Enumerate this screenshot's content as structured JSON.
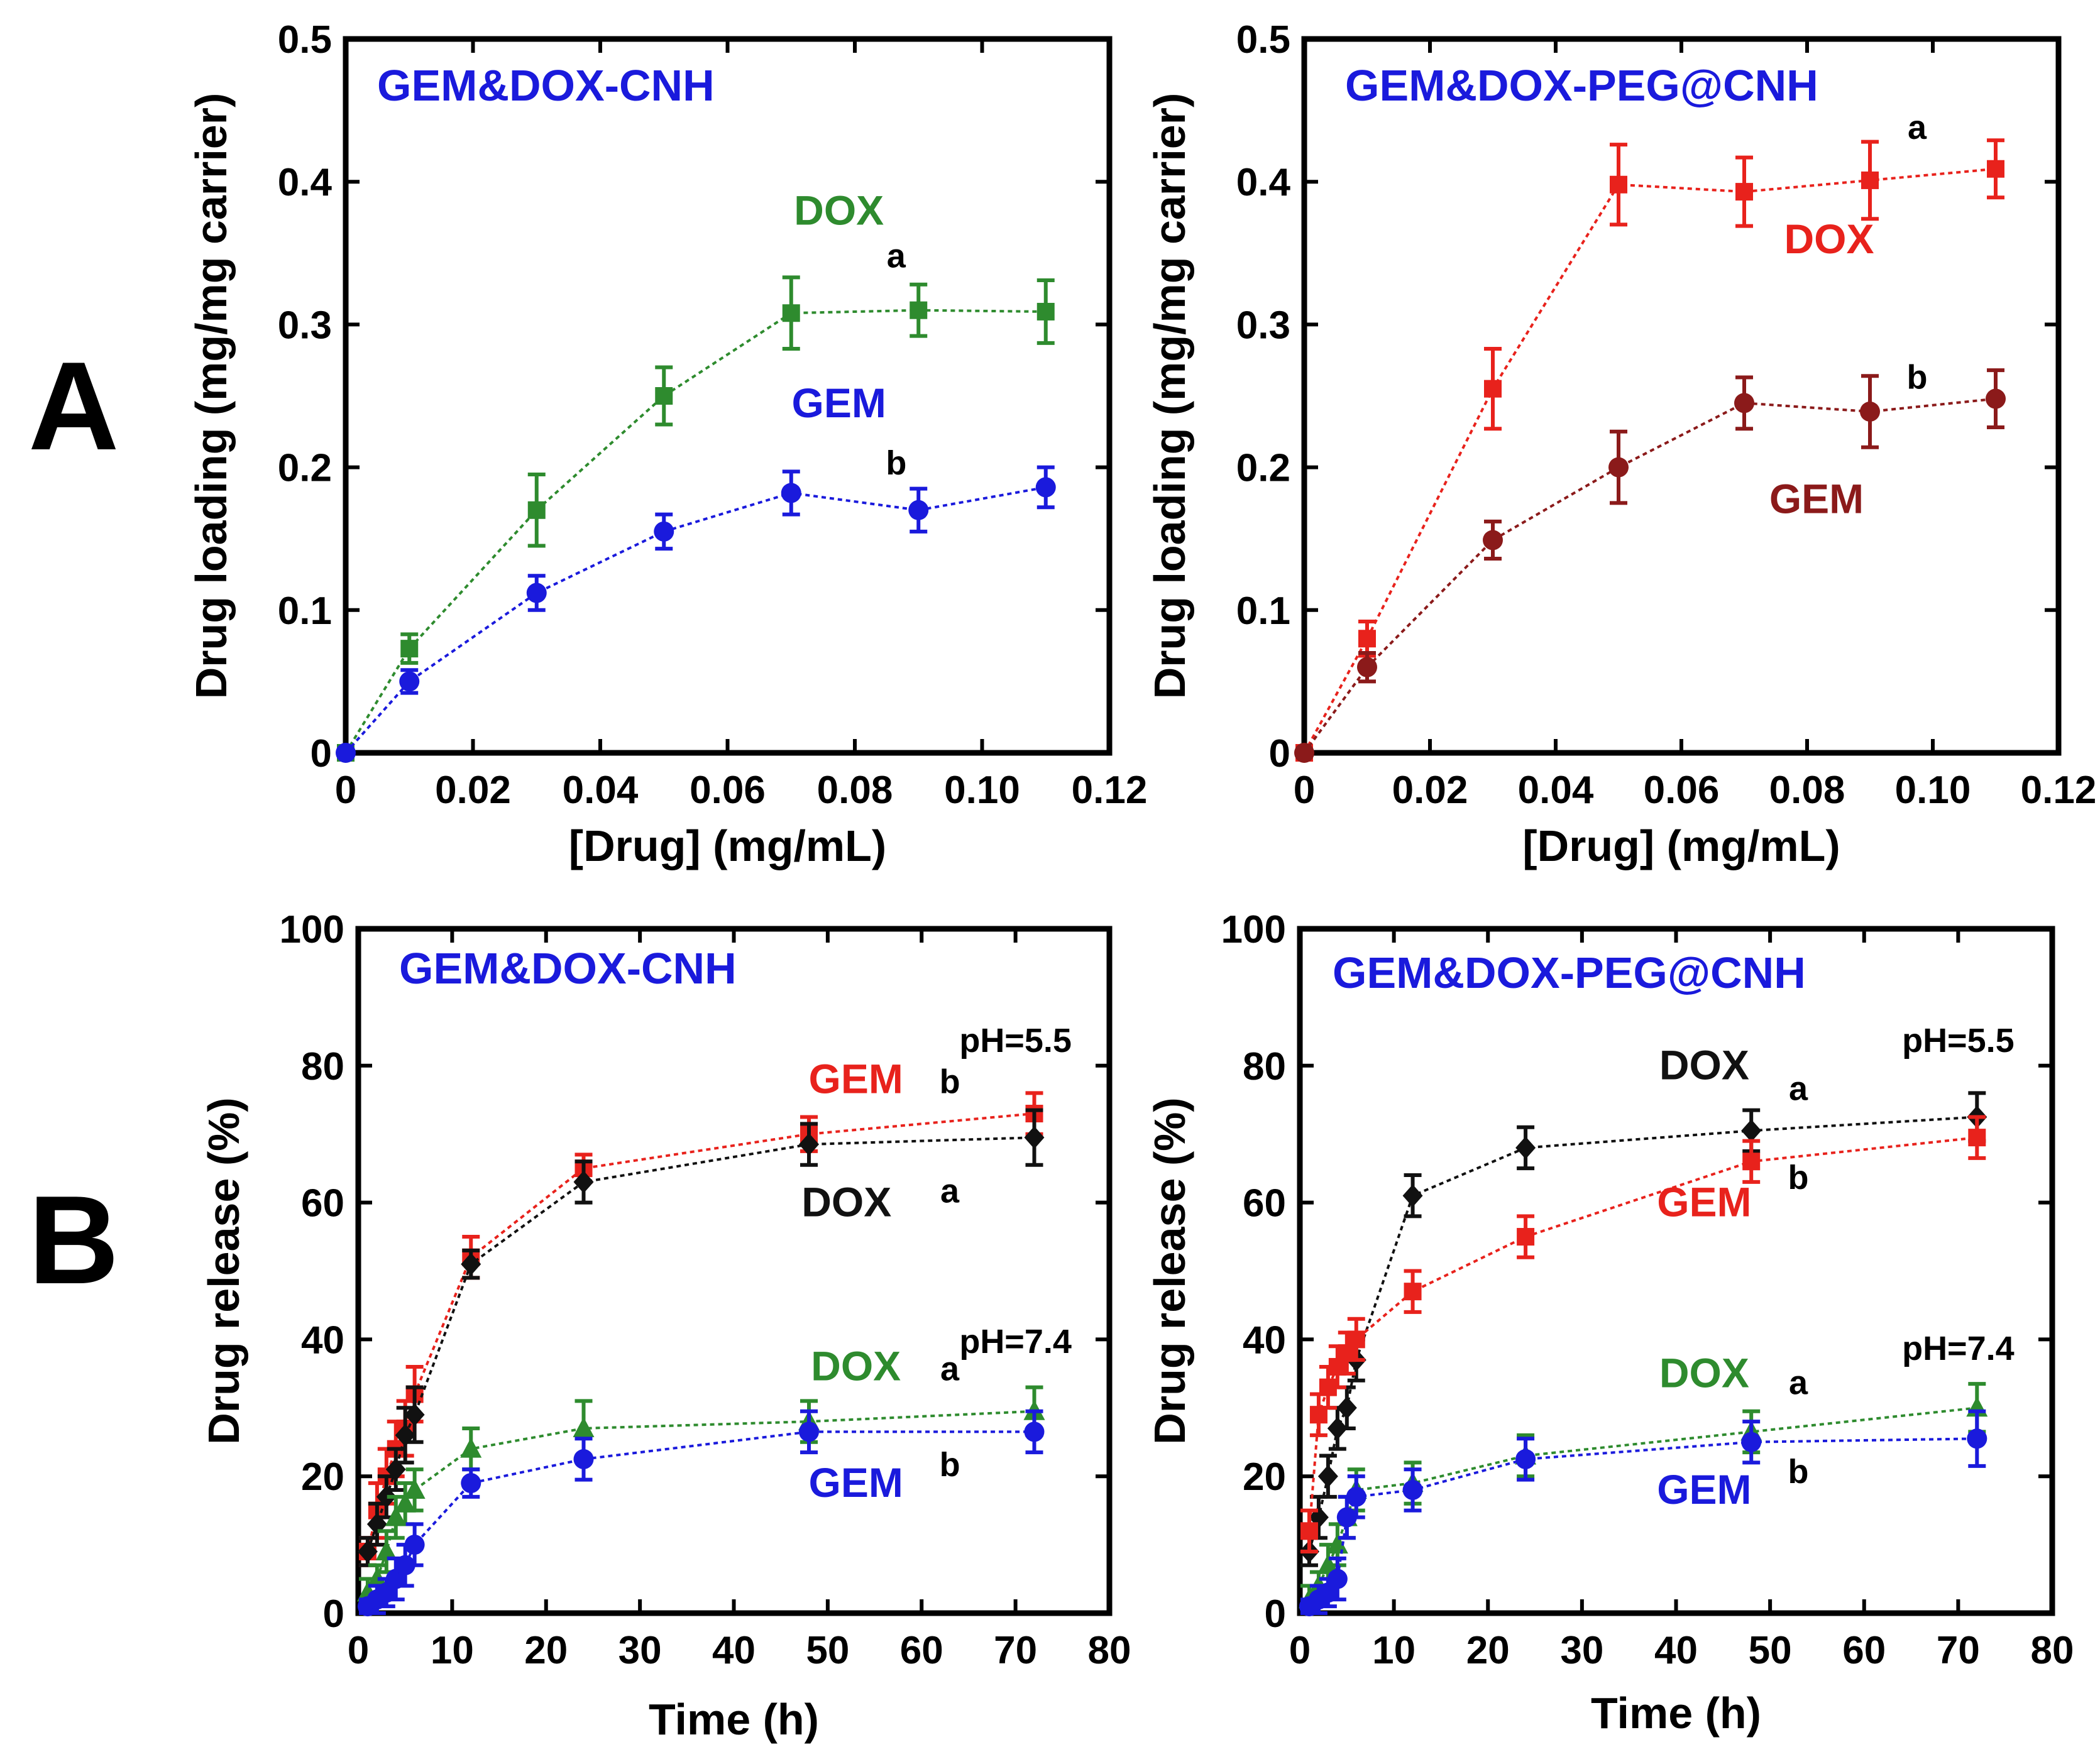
{
  "panels": [
    {
      "letter": "A"
    },
    {
      "letter": "B"
    }
  ],
  "chart_data": [
    {
      "type": "line",
      "title": "GEM&DOX-CNH",
      "title_color": "#1a1adc",
      "xlabel": "[Drug] (mg/mL)",
      "ylabel": "Drug loading (mg/mg carrier)",
      "xlim": [
        0,
        0.12
      ],
      "ylim": [
        0,
        0.5
      ],
      "xticks": [
        0,
        0.02,
        0.04,
        0.06,
        0.08,
        0.1,
        0.12
      ],
      "xtick_labels": [
        "0",
        "0.02",
        "0.04",
        "0.06",
        "0.08",
        "0.10",
        "0.12"
      ],
      "yticks": [
        0,
        0.1,
        0.2,
        0.3,
        0.4,
        0.5
      ],
      "ytick_labels": [
        "0",
        "0.1",
        "0.2",
        "0.3",
        "0.4",
        "0.5"
      ],
      "series": [
        {
          "name": "DOX",
          "color": "#2e8b2e",
          "marker": "square",
          "x": [
            0,
            0.01,
            0.03,
            0.05,
            0.07,
            0.09,
            0.11
          ],
          "y": [
            0,
            0.073,
            0.17,
            0.25,
            0.308,
            0.31,
            0.309
          ],
          "err": [
            0,
            0.01,
            0.025,
            0.02,
            0.025,
            0.018,
            0.022
          ]
        },
        {
          "name": "GEM",
          "color": "#1a1adc",
          "marker": "circle",
          "x": [
            0,
            0.01,
            0.03,
            0.05,
            0.07,
            0.09,
            0.11
          ],
          "y": [
            0,
            0.05,
            0.112,
            0.155,
            0.182,
            0.17,
            0.186
          ],
          "err": [
            0,
            0.008,
            0.012,
            0.012,
            0.015,
            0.015,
            0.014
          ]
        }
      ],
      "annotations": [
        {
          "text": "DOX",
          "color": "#2e8b2e",
          "kind": "series-label",
          "x": 0.0775,
          "y": 0.37
        },
        {
          "text": "a",
          "color": "#000000",
          "kind": "small-label",
          "x": 0.0865,
          "y": 0.34
        },
        {
          "text": "GEM",
          "color": "#1a1adc",
          "kind": "series-label",
          "x": 0.0775,
          "y": 0.235
        },
        {
          "text": "b",
          "color": "#000000",
          "kind": "small-label",
          "x": 0.0865,
          "y": 0.195
        }
      ]
    },
    {
      "type": "line",
      "title": "GEM&DOX-PEG@CNH",
      "title_color": "#1a1adc",
      "xlabel": "[Drug] (mg/mL)",
      "ylabel": "Drug loading (mg/mg carrier)",
      "xlim": [
        0,
        0.12
      ],
      "ylim": [
        0,
        0.5
      ],
      "xticks": [
        0,
        0.02,
        0.04,
        0.06,
        0.08,
        0.1,
        0.12
      ],
      "xtick_labels": [
        "0",
        "0.02",
        "0.04",
        "0.06",
        "0.08",
        "0.10",
        "0.12"
      ],
      "yticks": [
        0,
        0.1,
        0.2,
        0.3,
        0.4,
        0.5
      ],
      "ytick_labels": [
        "0",
        "0.1",
        "0.2",
        "0.3",
        "0.4",
        "0.5"
      ],
      "series": [
        {
          "name": "DOX",
          "color": "#e8221c",
          "marker": "square",
          "x": [
            0,
            0.01,
            0.03,
            0.05,
            0.07,
            0.09,
            0.11
          ],
          "y": [
            0,
            0.08,
            0.255,
            0.398,
            0.393,
            0.401,
            0.409
          ],
          "err": [
            0,
            0.012,
            0.028,
            0.028,
            0.024,
            0.027,
            0.02
          ]
        },
        {
          "name": "GEM",
          "color": "#8b1a1a",
          "marker": "circle",
          "x": [
            0,
            0.01,
            0.03,
            0.05,
            0.07,
            0.09,
            0.11
          ],
          "y": [
            0,
            0.06,
            0.149,
            0.2,
            0.245,
            0.239,
            0.248
          ],
          "err": [
            0,
            0.01,
            0.013,
            0.025,
            0.018,
            0.025,
            0.02
          ]
        }
      ],
      "annotations": [
        {
          "text": "a",
          "color": "#000000",
          "kind": "small-label",
          "x": 0.0975,
          "y": 0.43
        },
        {
          "text": "DOX",
          "color": "#e8221c",
          "kind": "series-label",
          "x": 0.0835,
          "y": 0.35
        },
        {
          "text": "b",
          "color": "#000000",
          "kind": "small-label",
          "x": 0.0975,
          "y": 0.255
        },
        {
          "text": "GEM",
          "color": "#8b1a1a",
          "kind": "series-label",
          "x": 0.0815,
          "y": 0.168
        }
      ]
    },
    {
      "type": "line",
      "title": "GEM&DOX-CNH",
      "title_color": "#1a1adc",
      "xlabel": "Time (h)",
      "ylabel": "Drug release (%)",
      "xlim": [
        0,
        80
      ],
      "ylim": [
        0,
        100
      ],
      "xticks": [
        0,
        10,
        20,
        30,
        40,
        50,
        60,
        70,
        80
      ],
      "xtick_labels": [
        "0",
        "10",
        "20",
        "30",
        "40",
        "50",
        "60",
        "70",
        "80"
      ],
      "yticks": [
        0,
        20,
        40,
        60,
        80,
        100
      ],
      "ytick_labels": [
        "0",
        "20",
        "40",
        "60",
        "80",
        "100"
      ],
      "series": [
        {
          "name": "GEM pH=5.5",
          "color": "#e8221c",
          "marker": "square",
          "x": [
            1,
            2,
            3,
            4,
            5,
            6,
            12,
            24,
            48,
            72
          ],
          "y": [
            9,
            15,
            20,
            24,
            27,
            32,
            52,
            65,
            70,
            73
          ],
          "err": [
            2,
            4,
            4,
            4,
            4,
            4,
            3,
            2,
            2.5,
            3
          ]
        },
        {
          "name": "DOX pH=5.5",
          "color": "#111111",
          "marker": "diamond",
          "x": [
            1,
            2,
            3,
            4,
            5,
            6,
            12,
            24,
            48,
            72
          ],
          "y": [
            9,
            13,
            17,
            21,
            26,
            29,
            51,
            63,
            68.5,
            69.5
          ],
          "err": [
            2,
            3,
            3,
            3,
            4,
            4,
            2,
            3,
            3,
            4
          ]
        },
        {
          "name": "DOX pH=7.4",
          "color": "#2e8b2e",
          "marker": "triangle",
          "x": [
            1,
            2,
            3,
            4,
            5,
            6,
            12,
            24,
            48,
            72
          ],
          "y": [
            3,
            5,
            9,
            14,
            16,
            18,
            24,
            27,
            28,
            29.5
          ],
          "err": [
            2,
            2,
            3,
            3,
            3,
            3,
            3,
            4,
            3,
            3.5
          ]
        },
        {
          "name": "GEM pH=7.4",
          "color": "#1a1adc",
          "marker": "circle",
          "x": [
            1,
            2,
            3,
            4,
            5,
            6,
            12,
            24,
            48,
            72
          ],
          "y": [
            1,
            2,
            3,
            5,
            7,
            10,
            19,
            22.5,
            26.5,
            26.5
          ],
          "err": [
            1,
            2,
            2,
            3,
            3,
            3,
            2,
            3,
            3,
            3
          ]
        }
      ],
      "annotations": [
        {
          "text": "pH=5.5",
          "color": "#000000",
          "kind": "ph-label",
          "x": 70,
          "y": 82
        },
        {
          "text": "GEM",
          "color": "#e8221c",
          "kind": "series-label",
          "x": 53,
          "y": 76
        },
        {
          "text": "b",
          "color": "#000000",
          "kind": "small-label",
          "x": 63,
          "y": 76
        },
        {
          "text": "DOX",
          "color": "#111111",
          "kind": "series-label",
          "x": 52,
          "y": 58
        },
        {
          "text": "a",
          "color": "#000000",
          "kind": "small-label",
          "x": 63,
          "y": 60
        },
        {
          "text": "pH=7.4",
          "color": "#000000",
          "kind": "ph-label",
          "x": 70,
          "y": 38
        },
        {
          "text": "DOX",
          "color": "#2e8b2e",
          "kind": "series-label",
          "x": 53,
          "y": 34
        },
        {
          "text": "a",
          "color": "#000000",
          "kind": "small-label",
          "x": 63,
          "y": 34
        },
        {
          "text": "GEM",
          "color": "#1a1adc",
          "kind": "series-label",
          "x": 53,
          "y": 17
        },
        {
          "text": "b",
          "color": "#000000",
          "kind": "small-label",
          "x": 63,
          "y": 20
        }
      ]
    },
    {
      "type": "line",
      "title": "GEM&DOX-PEG@CNH",
      "title_color": "#1a1adc",
      "xlabel": "Time (h)",
      "ylabel": "Drug release (%)",
      "xlim": [
        0,
        80
      ],
      "ylim": [
        0,
        100
      ],
      "xticks": [
        0,
        10,
        20,
        30,
        40,
        50,
        60,
        70,
        80
      ],
      "xtick_labels": [
        "0",
        "10",
        "20",
        "30",
        "40",
        "50",
        "60",
        "70",
        "80"
      ],
      "yticks": [
        0,
        20,
        40,
        60,
        80,
        100
      ],
      "ytick_labels": [
        "0",
        "20",
        "40",
        "60",
        "80",
        "100"
      ],
      "series": [
        {
          "name": "DOX pH=5.5",
          "color": "#111111",
          "marker": "diamond",
          "x": [
            1,
            2,
            3,
            4,
            5,
            6,
            12,
            24,
            48,
            72
          ],
          "y": [
            9,
            14,
            20,
            27,
            30,
            37,
            61,
            68,
            70.5,
            72.5
          ],
          "err": [
            2,
            3,
            3,
            3,
            3,
            3,
            3,
            3,
            3,
            3.5
          ]
        },
        {
          "name": "GEM pH=5.5",
          "color": "#e8221c",
          "marker": "square",
          "x": [
            1,
            2,
            3,
            4,
            5,
            6,
            12,
            24,
            48,
            72
          ],
          "y": [
            12,
            29,
            33,
            36,
            38,
            40,
            47,
            55,
            66,
            69.5
          ],
          "err": [
            3,
            3,
            3,
            3,
            3,
            3,
            3,
            3,
            3,
            3
          ]
        },
        {
          "name": "DOX pH=7.4",
          "color": "#2e8b2e",
          "marker": "triangle",
          "x": [
            1,
            2,
            3,
            4,
            5,
            6,
            12,
            24,
            48,
            72
          ],
          "y": [
            2,
            4,
            7,
            10,
            14,
            18,
            19,
            23,
            26.5,
            30
          ],
          "err": [
            2,
            2,
            3,
            3,
            3,
            3,
            3,
            3,
            3,
            3.5
          ]
        },
        {
          "name": "GEM pH=7.4",
          "color": "#1a1adc",
          "marker": "circle",
          "x": [
            1,
            2,
            3,
            4,
            5,
            6,
            12,
            24,
            48,
            72
          ],
          "y": [
            1,
            2,
            3,
            5,
            14,
            17,
            18,
            22.5,
            25,
            25.5
          ],
          "err": [
            1,
            2,
            2,
            3,
            3,
            3,
            3,
            3,
            3,
            4
          ]
        }
      ],
      "annotations": [
        {
          "text": "pH=5.5",
          "color": "#000000",
          "kind": "ph-label",
          "x": 70,
          "y": 82
        },
        {
          "text": "DOX",
          "color": "#111111",
          "kind": "series-label",
          "x": 43,
          "y": 78
        },
        {
          "text": "a",
          "color": "#000000",
          "kind": "small-label",
          "x": 53,
          "y": 75
        },
        {
          "text": "GEM",
          "color": "#e8221c",
          "kind": "series-label",
          "x": 43,
          "y": 58
        },
        {
          "text": "b",
          "color": "#000000",
          "kind": "small-label",
          "x": 53,
          "y": 62
        },
        {
          "text": "pH=7.4",
          "color": "#000000",
          "kind": "ph-label",
          "x": 70,
          "y": 37
        },
        {
          "text": "DOX",
          "color": "#2e8b2e",
          "kind": "series-label",
          "x": 43,
          "y": 33
        },
        {
          "text": "a",
          "color": "#000000",
          "kind": "small-label",
          "x": 53,
          "y": 32
        },
        {
          "text": "GEM",
          "color": "#1a1adc",
          "kind": "series-label",
          "x": 43,
          "y": 16
        },
        {
          "text": "b",
          "color": "#000000",
          "kind": "small-label",
          "x": 53,
          "y": 19
        }
      ]
    }
  ]
}
